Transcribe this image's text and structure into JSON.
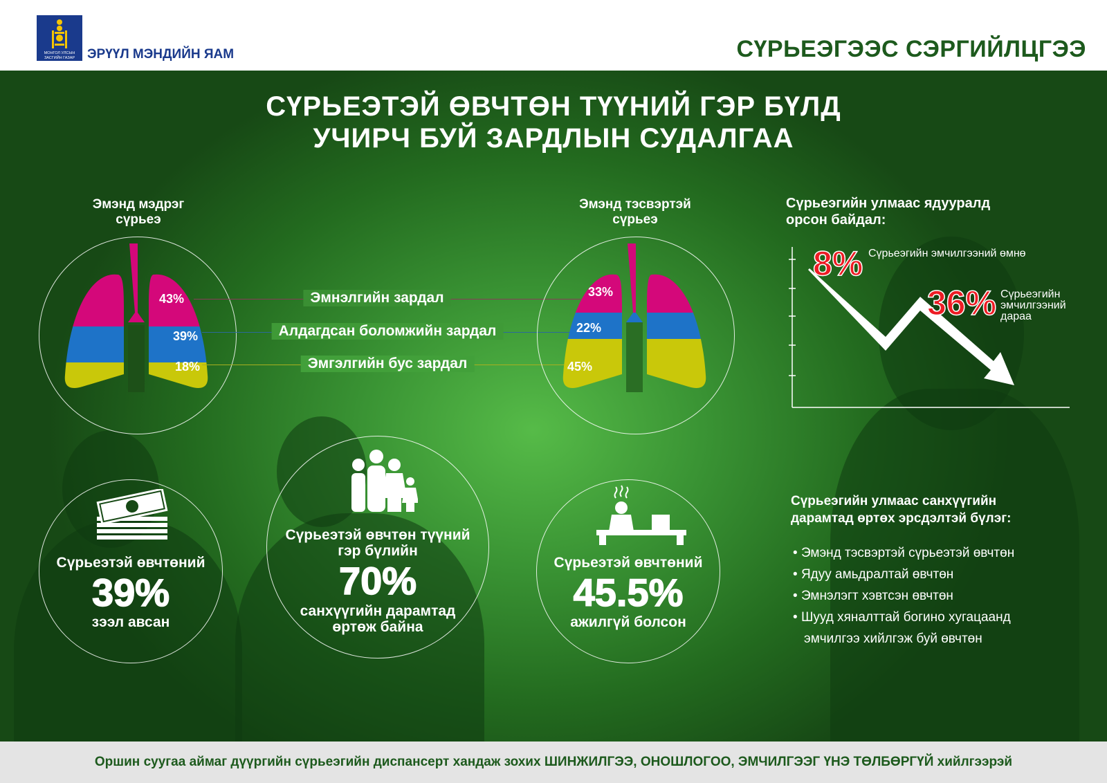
{
  "header": {
    "logo_text": "МОНГОЛ УЛСЫН ЗАСГИЙН ГАЗАР",
    "ministry": "ЭРҮҮЛ МЭНДИЙН ЯАМ",
    "slogan": "СҮРЬЕЭГЭЭС СЭРГИЙЛЦГЭЭ"
  },
  "title": {
    "line1": "СҮРЬЕЭТЭЙ ӨВЧТӨН ТҮҮНИЙ ГЭР БҮЛД",
    "line2": "УЧИРЧ БУЙ ЗАРДЛЫН СУДАЛГАА"
  },
  "lungs": {
    "categories": [
      "Эмнэлгийн зардал",
      "Алдагдсан боломжийн зардал",
      "Эмгэлгийн бус зардал"
    ],
    "colors": [
      "#d4087a",
      "#1e73c8",
      "#c9c80a"
    ],
    "sensitive": {
      "title": "Эмэнд мэдрэг сүрьеэ",
      "values": [
        "43%",
        "39%",
        "18%"
      ]
    },
    "resistant": {
      "title": "Эмэнд тэсвэртэй сүрьеэ",
      "values": [
        "33%",
        "22%",
        "45%"
      ]
    }
  },
  "poverty": {
    "title": "Сүрьеэгийн улмаас ядууралд орсон байдал:",
    "before_value": "8%",
    "before_label": "Сүрьеэгийн эмчилгээний өмнө",
    "after_value": "36%",
    "after_label": "Сүрьеэгийн эмчилгээний дараа"
  },
  "stats": [
    {
      "top": "Сүрьеэтэй өвчтөний",
      "value": "39%",
      "bottom": "зээл авсан"
    },
    {
      "top": "Сүрьеэтэй өвчтөн түүний гэр бүлийн",
      "value": "70%",
      "bottom": "санхүүгийн дарамтад өртөж байна"
    },
    {
      "top": "Сүрьеэтэй өвчтөний",
      "value": "45.5%",
      "bottom": "ажилгүй болсон"
    }
  ],
  "risk": {
    "title": "Сүрьеэгийн улмаас санхүүгийн дарамтад өртөх эрсдэлтэй бүлэг:",
    "items": [
      "Эмэнд тэсвэртэй сүрьеэтэй өвчтөн",
      "Ядуу амьдралтай өвчтөн",
      "Эмнэлэгт хэвтсэн өвчтөн",
      "Шууд хяналттай богино хугацаанд эмчилгээ хийлгэж буй өвчтөн"
    ]
  },
  "footer": "Оршин суугаа аймаг дүүргийн сүрьеэгийн диспансерт хандаж зохих ШИНЖИЛГЭЭ, ОНОШЛОГОО, ЭМЧИЛГЭЭГ ҮНЭ ТӨЛБӨРГҮЙ хийлгээрэй"
}
